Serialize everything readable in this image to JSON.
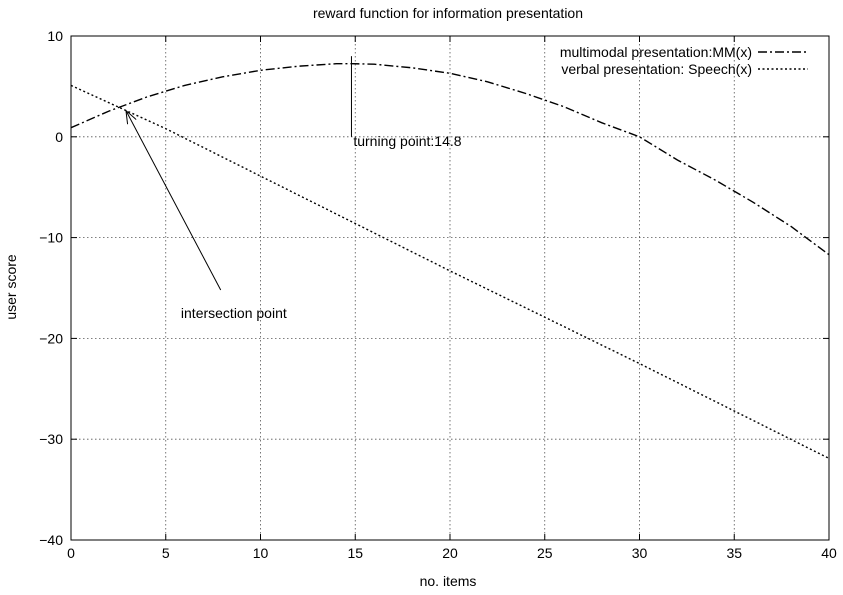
{
  "chart_data": {
    "type": "line",
    "title": "reward function for information presentation",
    "xlabel": "no. items",
    "ylabel": "user score",
    "xlim": [
      0,
      40
    ],
    "ylim": [
      -40,
      10
    ],
    "xticks": [
      0,
      5,
      10,
      15,
      20,
      25,
      30,
      35,
      40
    ],
    "yticks": [
      -40,
      -30,
      -20,
      -10,
      0,
      10
    ],
    "grid": true,
    "legend_position": "top-right",
    "series": [
      {
        "name": "multimodal presentation:MM(x)",
        "style": "dash-dot",
        "x": [
          0,
          2,
          4,
          6,
          8,
          10,
          12,
          14,
          14.8,
          16,
          18,
          20,
          22,
          24,
          26,
          28,
          30,
          32,
          34,
          36,
          38,
          40
        ],
        "y": [
          0.9,
          2.55,
          3.95,
          5.1,
          5.95,
          6.6,
          7.0,
          7.25,
          7.25,
          7.2,
          6.85,
          6.3,
          5.45,
          4.3,
          3.0,
          1.4,
          0.0,
          -2.3,
          -4.3,
          -6.5,
          -8.9,
          -11.7
        ]
      },
      {
        "name": "verbal presentation: Speech(x)",
        "style": "dotted",
        "x": [
          0,
          5,
          10,
          15,
          20,
          25,
          30,
          35,
          40
        ],
        "y": [
          5.1,
          0.8,
          -3.9,
          -8.6,
          -13.3,
          -17.9,
          -22.5,
          -27.2,
          -31.9
        ]
      }
    ],
    "annotations": [
      {
        "text": "intersection point",
        "at": [
          2.9,
          2.6
        ],
        "text_at": [
          5.8,
          -17.5
        ],
        "arrow_from": [
          7.9,
          -15.2
        ]
      },
      {
        "text": "turning point:14.8",
        "at": [
          14.8,
          0
        ],
        "line_from": [
          14.8,
          8.0
        ],
        "line_to": [
          14.8,
          0.0
        ],
        "text_at": [
          14.9,
          -0.4
        ]
      }
    ],
    "colors": {
      "line": "#000000",
      "grid": "#555555",
      "background": "#ffffff"
    }
  }
}
